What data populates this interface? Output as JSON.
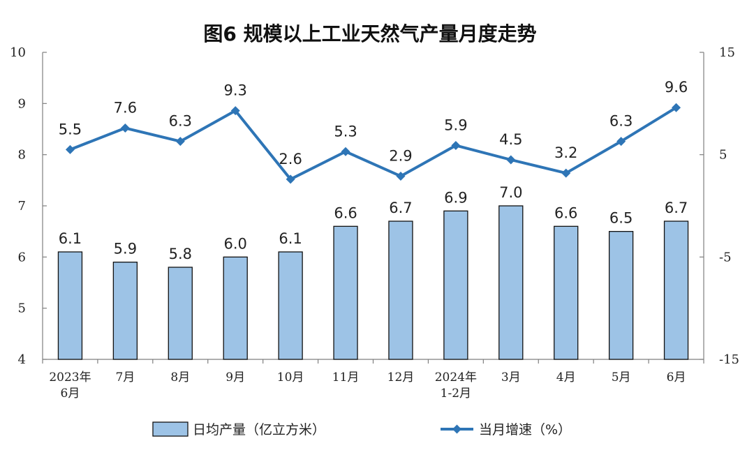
{
  "chart_data": {
    "type": "bar",
    "title": "图6  规模以上工业天然气产量月度走势",
    "categories": [
      [
        "2023年",
        "6月"
      ],
      [
        "7月"
      ],
      [
        "8月"
      ],
      [
        "9月"
      ],
      [
        "10月"
      ],
      [
        "11月"
      ],
      [
        "12月"
      ],
      [
        "2024年",
        "1-2月"
      ],
      [
        "3月"
      ],
      [
        "4月"
      ],
      [
        "5月"
      ],
      [
        "6月"
      ]
    ],
    "series": [
      {
        "name": "日均产量（亿立方米）",
        "type": "bar",
        "axis": "left",
        "color": "#9DC3E6",
        "values": [
          6.1,
          5.9,
          5.8,
          6.0,
          6.1,
          6.6,
          6.7,
          6.9,
          7.0,
          6.6,
          6.5,
          6.7
        ]
      },
      {
        "name": "当月增速（%）",
        "type": "line",
        "axis": "right",
        "color": "#2E75B6",
        "values": [
          5.5,
          7.6,
          6.3,
          9.3,
          2.6,
          5.3,
          2.9,
          5.9,
          4.5,
          3.2,
          6.3,
          9.6
        ]
      }
    ],
    "left_axis": {
      "min": 4,
      "max": 10,
      "ticks": [
        4,
        5,
        6,
        7,
        8,
        9,
        10
      ]
    },
    "right_axis": {
      "min": -15,
      "max": 15,
      "ticks": [
        -15,
        -5,
        5,
        15
      ]
    },
    "grid": false,
    "legend_position": "bottom"
  }
}
